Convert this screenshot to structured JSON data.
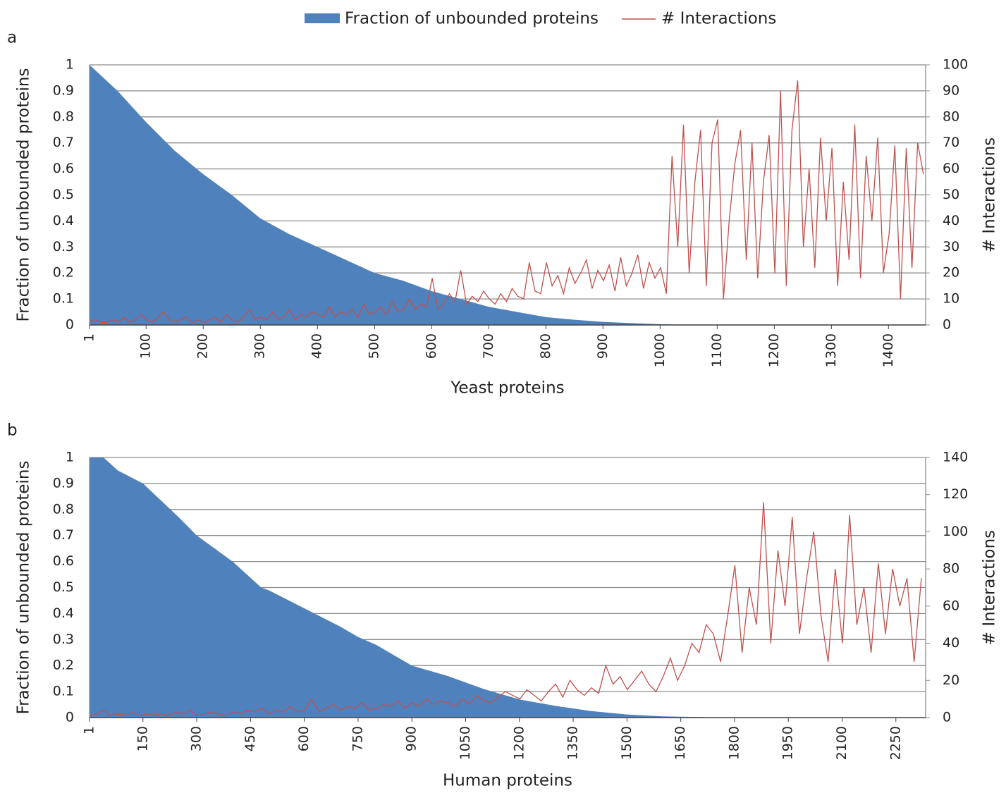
{
  "chart_data": [
    {
      "type": "combo",
      "label": "a",
      "xlabel": "Yeast proteins",
      "ylabel": "Fraction of unbounded proteins",
      "y2label": "# Interactions",
      "xlim": [
        1,
        1465
      ],
      "xticks": [
        1,
        100,
        200,
        300,
        400,
        500,
        600,
        700,
        800,
        900,
        1000,
        1100,
        1200,
        1300,
        1400
      ],
      "ylim": [
        0,
        1
      ],
      "yticks": [
        0,
        0.1,
        0.2,
        0.3,
        0.4,
        0.5,
        0.6,
        0.7,
        0.8,
        0.9,
        1
      ],
      "y2lim": [
        0,
        100
      ],
      "y2ticks": [
        0,
        10,
        20,
        30,
        40,
        50,
        60,
        70,
        80,
        90,
        100
      ],
      "grid": true,
      "series": [
        {
          "name": "Fraction of unbounded proteins",
          "color": "#4f81bd",
          "kind": "area",
          "x": [
            1,
            50,
            100,
            150,
            200,
            250,
            300,
            350,
            400,
            450,
            500,
            550,
            600,
            650,
            700,
            750,
            800,
            850,
            900,
            950,
            1000,
            1040
          ],
          "values": [
            1,
            0.9,
            0.78,
            0.67,
            0.58,
            0.5,
            0.41,
            0.35,
            0.3,
            0.25,
            0.2,
            0.17,
            0.13,
            0.1,
            0.07,
            0.05,
            0.03,
            0.02,
            0.012,
            0.007,
            0.003,
            0
          ]
        },
        {
          "name": "# Interactions",
          "color": "#c0504d",
          "kind": "line",
          "axis": "y2",
          "x": [
            1,
            11,
            21,
            31,
            41,
            51,
            61,
            71,
            81,
            91,
            101,
            111,
            121,
            131,
            141,
            151,
            161,
            171,
            181,
            191,
            201,
            211,
            221,
            231,
            241,
            251,
            261,
            271,
            281,
            291,
            301,
            311,
            321,
            331,
            341,
            351,
            361,
            371,
            381,
            391,
            401,
            411,
            421,
            431,
            441,
            451,
            461,
            471,
            481,
            491,
            501,
            511,
            521,
            531,
            541,
            551,
            561,
            571,
            581,
            591,
            601,
            611,
            621,
            631,
            641,
            651,
            661,
            671,
            681,
            691,
            701,
            711,
            721,
            731,
            741,
            751,
            761,
            771,
            781,
            791,
            801,
            811,
            821,
            831,
            841,
            851,
            861,
            871,
            881,
            891,
            901,
            911,
            921,
            931,
            941,
            951,
            961,
            971,
            981,
            991,
            1001,
            1011,
            1021,
            1031,
            1041,
            1051,
            1061,
            1071,
            1081,
            1091,
            1101,
            1111,
            1121,
            1131,
            1141,
            1151,
            1161,
            1171,
            1181,
            1191,
            1201,
            1211,
            1221,
            1231,
            1241,
            1251,
            1261,
            1271,
            1281,
            1291,
            1301,
            1311,
            1321,
            1331,
            1341,
            1351,
            1361,
            1371,
            1381,
            1391,
            1401,
            1411,
            1421,
            1431,
            1441,
            1451,
            1461
          ],
          "values": [
            1,
            2,
            1,
            1,
            2,
            1,
            3,
            1,
            2,
            4,
            2,
            1,
            3,
            5,
            2,
            1,
            2,
            3,
            1,
            2,
            1,
            2,
            3,
            1,
            4,
            2,
            1,
            3,
            6,
            2,
            3,
            2,
            5,
            2,
            3,
            6,
            2,
            4,
            3,
            5,
            4,
            3,
            7,
            3,
            5,
            4,
            6,
            3,
            8,
            4,
            5,
            7,
            4,
            9,
            5,
            6,
            10,
            6,
            8,
            7,
            18,
            6,
            8,
            12,
            9,
            21,
            8,
            11,
            9,
            13,
            10,
            8,
            12,
            9,
            14,
            11,
            10,
            24,
            13,
            12,
            24,
            15,
            19,
            12,
            22,
            16,
            20,
            25,
            14,
            21,
            17,
            23,
            13,
            26,
            15,
            20,
            27,
            14,
            24,
            18,
            22,
            12,
            65,
            30,
            77,
            20,
            55,
            75,
            15,
            70,
            79,
            10,
            40,
            62,
            75,
            25,
            70,
            18,
            55,
            73,
            20,
            90,
            15,
            75,
            94,
            30,
            60,
            22,
            72,
            40,
            68,
            15,
            55,
            25,
            77,
            18,
            65,
            40,
            72,
            20,
            35,
            69,
            10,
            68,
            22,
            70,
            58
          ]
        }
      ]
    },
    {
      "type": "combo",
      "label": "b",
      "xlabel": "Human proteins",
      "ylabel": "Fraction of unbounded proteins",
      "y2label": "# Interactions",
      "xlim": [
        1,
        2333
      ],
      "xticks": [
        1,
        150,
        300,
        450,
        600,
        750,
        900,
        1050,
        1200,
        1350,
        1500,
        1650,
        1800,
        1950,
        2100,
        2250
      ],
      "ylim": [
        0,
        1
      ],
      "yticks": [
        0,
        0.1,
        0.2,
        0.3,
        0.4,
        0.5,
        0.6,
        0.7,
        0.8,
        0.9,
        1
      ],
      "y2lim": [
        0,
        140
      ],
      "y2ticks": [
        0,
        20,
        40,
        60,
        80,
        100,
        120,
        140
      ],
      "grid": true,
      "series": [
        {
          "color": "#4f81bd",
          "kind": "area",
          "x": [
            1,
            40,
            80,
            150,
            250,
            300,
            400,
            480,
            500,
            600,
            700,
            750,
            800,
            900,
            1000,
            1100,
            1200,
            1300,
            1400,
            1500,
            1600,
            1700,
            1780
          ],
          "values": [
            1,
            1,
            0.95,
            0.9,
            0.77,
            0.7,
            0.6,
            0.5,
            0.49,
            0.42,
            0.35,
            0.31,
            0.28,
            0.2,
            0.16,
            0.11,
            0.07,
            0.045,
            0.025,
            0.012,
            0.005,
            0.002,
            0
          ]
        },
        {
          "color": "#c0504d",
          "kind": "line",
          "axis": "y2",
          "x": [
            1,
            21,
            41,
            61,
            81,
            101,
            121,
            141,
            161,
            181,
            201,
            221,
            241,
            261,
            281,
            301,
            321,
            341,
            361,
            381,
            401,
            421,
            441,
            461,
            481,
            501,
            521,
            541,
            561,
            581,
            601,
            621,
            641,
            661,
            681,
            701,
            721,
            741,
            761,
            781,
            801,
            821,
            841,
            861,
            881,
            901,
            921,
            941,
            961,
            981,
            1001,
            1021,
            1041,
            1061,
            1081,
            1101,
            1121,
            1141,
            1161,
            1181,
            1201,
            1221,
            1241,
            1261,
            1281,
            1301,
            1321,
            1341,
            1361,
            1381,
            1401,
            1421,
            1441,
            1461,
            1481,
            1501,
            1521,
            1541,
            1561,
            1581,
            1601,
            1621,
            1641,
            1661,
            1681,
            1701,
            1721,
            1741,
            1761,
            1781,
            1801,
            1821,
            1841,
            1861,
            1881,
            1901,
            1921,
            1941,
            1961,
            1981,
            2001,
            2021,
            2041,
            2061,
            2081,
            2101,
            2121,
            2141,
            2161,
            2181,
            2201,
            2221,
            2241,
            2261,
            2281,
            2301,
            2321
          ],
          "values": [
            1,
            2,
            4,
            1,
            2,
            1,
            3,
            1,
            2,
            1,
            2,
            1,
            3,
            2,
            4,
            1,
            2,
            3,
            2,
            1,
            3,
            2,
            4,
            3,
            5,
            2,
            4,
            3,
            6,
            3,
            4,
            10,
            3,
            5,
            7,
            4,
            6,
            5,
            8,
            4,
            5,
            7,
            6,
            9,
            5,
            8,
            6,
            10,
            7,
            9,
            8,
            6,
            10,
            7,
            12,
            9,
            8,
            11,
            14,
            12,
            10,
            15,
            12,
            9,
            14,
            18,
            11,
            20,
            15,
            12,
            16,
            13,
            28,
            18,
            22,
            15,
            20,
            25,
            18,
            14,
            22,
            32,
            20,
            28,
            40,
            35,
            50,
            45,
            30,
            55,
            82,
            35,
            70,
            50,
            116,
            40,
            90,
            60,
            108,
            45,
            75,
            100,
            55,
            30,
            80,
            40,
            109,
            50,
            70,
            35,
            83,
            45,
            80,
            60,
            75,
            30,
            75
          ]
        }
      ]
    }
  ]
}
